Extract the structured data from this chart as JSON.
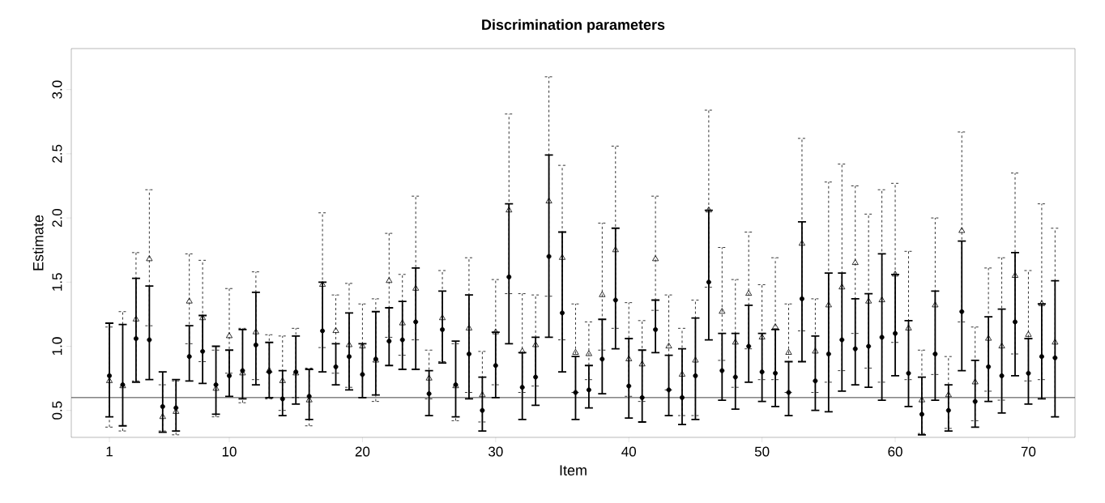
{
  "chart_data": {
    "type": "scatter",
    "title": "Discrimination parameters",
    "xlabel": "Item",
    "ylabel": "Estimate",
    "x": [
      1,
      2,
      3,
      4,
      5,
      6,
      7,
      8,
      9,
      10,
      11,
      12,
      13,
      14,
      15,
      16,
      17,
      18,
      19,
      20,
      21,
      22,
      23,
      24,
      25,
      26,
      27,
      28,
      29,
      30,
      31,
      32,
      33,
      34,
      35,
      36,
      37,
      38,
      39,
      40,
      41,
      42,
      43,
      44,
      45,
      46,
      47,
      48,
      49,
      50,
      51,
      52,
      53,
      54,
      55,
      56,
      57,
      58,
      59,
      60,
      61,
      62,
      63,
      64,
      65,
      66,
      67,
      68,
      69,
      70,
      71,
      72
    ],
    "series": [
      {
        "color": "#000000",
        "marker": "circle",
        "line_style": "solid",
        "values": [
          0.77,
          0.7,
          1.06,
          1.05,
          0.53,
          0.52,
          0.92,
          0.96,
          0.7,
          0.77,
          0.81,
          1.01,
          0.8,
          0.59,
          0.8,
          0.61,
          1.12,
          0.84,
          0.92,
          0.78,
          0.9,
          1.04,
          1.05,
          1.19,
          0.63,
          1.13,
          0.7,
          0.94,
          0.5,
          0.85,
          1.54,
          0.68,
          0.76,
          1.7,
          1.26,
          0.64,
          0.66,
          0.9,
          1.36,
          0.69,
          0.6,
          1.13,
          0.66,
          0.6,
          0.77,
          1.5,
          0.81,
          0.76,
          1.0,
          0.8,
          0.79,
          0.64,
          1.37,
          0.73,
          0.94,
          1.05,
          0.98,
          1.0,
          1.07,
          1.1,
          0.79,
          0.47,
          0.94,
          0.5,
          1.27,
          0.57,
          0.84,
          0.77,
          1.19,
          0.79,
          0.92,
          0.91
        ],
        "errors": [
          [
            0.45,
            1.18
          ],
          [
            0.38,
            1.17
          ],
          [
            0.72,
            1.53
          ],
          [
            0.74,
            1.47
          ],
          [
            0.33,
            0.8
          ],
          [
            0.34,
            0.74
          ],
          [
            0.73,
            1.16
          ],
          [
            0.71,
            1.24
          ],
          [
            0.47,
            1.0
          ],
          [
            0.61,
            0.97
          ],
          [
            0.59,
            1.13
          ],
          [
            0.7,
            1.42
          ],
          [
            0.6,
            1.03
          ],
          [
            0.46,
            0.81
          ],
          [
            0.55,
            1.08
          ],
          [
            0.43,
            0.82
          ],
          [
            0.8,
            1.5
          ],
          [
            0.7,
            1.02
          ],
          [
            0.66,
            1.26
          ],
          [
            0.6,
            1.02
          ],
          [
            0.62,
            1.27
          ],
          [
            0.85,
            1.3
          ],
          [
            0.82,
            1.35
          ],
          [
            0.82,
            1.61
          ],
          [
            0.46,
            0.81
          ],
          [
            0.87,
            1.43
          ],
          [
            0.45,
            1.04
          ],
          [
            0.59,
            1.4
          ],
          [
            0.34,
            0.76
          ],
          [
            0.6,
            1.11
          ],
          [
            1.02,
            2.11
          ],
          [
            0.43,
            0.95
          ],
          [
            0.54,
            1.07
          ],
          [
            1.07,
            2.49
          ],
          [
            0.8,
            1.89
          ],
          [
            0.43,
            0.92
          ],
          [
            0.52,
            0.85
          ],
          [
            0.63,
            1.21
          ],
          [
            0.98,
            1.92
          ],
          [
            0.44,
            1.06
          ],
          [
            0.41,
            0.97
          ],
          [
            0.95,
            1.36
          ],
          [
            0.46,
            0.93
          ],
          [
            0.39,
            0.98
          ],
          [
            0.43,
            1.22
          ],
          [
            1.05,
            2.06
          ],
          [
            0.58,
            1.1
          ],
          [
            0.51,
            1.1
          ],
          [
            0.72,
            1.32
          ],
          [
            0.57,
            1.1
          ],
          [
            0.53,
            1.13
          ],
          [
            0.46,
            0.88
          ],
          [
            0.88,
            1.97
          ],
          [
            0.5,
            1.08
          ],
          [
            0.49,
            1.57
          ],
          [
            0.65,
            1.57
          ],
          [
            0.7,
            1.37
          ],
          [
            0.68,
            1.41
          ],
          [
            0.58,
            1.72
          ],
          [
            0.77,
            1.56
          ],
          [
            0.53,
            1.2
          ],
          [
            0.31,
            0.76
          ],
          [
            0.58,
            1.43
          ],
          [
            0.34,
            0.7
          ],
          [
            0.81,
            1.82
          ],
          [
            0.37,
            0.89
          ],
          [
            0.57,
            1.23
          ],
          [
            0.48,
            1.29
          ],
          [
            0.77,
            1.73
          ],
          [
            0.55,
            1.06
          ],
          [
            0.59,
            1.33
          ],
          [
            0.45,
            1.51
          ]
        ]
      },
      {
        "color": "#000000",
        "marker": "triangle",
        "line_style": "dashed",
        "values": [
          0.73,
          0.69,
          1.21,
          1.68,
          0.45,
          0.49,
          1.35,
          1.22,
          0.67,
          1.08,
          0.79,
          1.11,
          0.81,
          0.73,
          0.79,
          0.58,
          1.48,
          1.12,
          1.01,
          1.0,
          0.89,
          1.51,
          1.18,
          1.45,
          0.75,
          1.22,
          0.69,
          1.14,
          0.62,
          1.11,
          2.06,
          0.96,
          1.01,
          2.13,
          1.69,
          0.95,
          0.94,
          1.4,
          1.75,
          0.9,
          0.86,
          1.68,
          1.0,
          0.78,
          0.89,
          2.06,
          1.27,
          1.03,
          1.41,
          1.07,
          1.15,
          0.95,
          1.8,
          0.96,
          1.32,
          1.46,
          1.65,
          1.35,
          1.36,
          1.56,
          1.14,
          0.58,
          1.32,
          0.62,
          1.9,
          0.72,
          1.06,
          1.0,
          1.55,
          1.09,
          1.33,
          1.03
        ],
        "errors": [
          [
            0.37,
            1.15
          ],
          [
            0.34,
            1.27
          ],
          [
            0.73,
            1.73
          ],
          [
            1.16,
            2.22
          ],
          [
            0.34,
            0.7
          ],
          [
            0.31,
            0.73
          ],
          [
            1.02,
            1.72
          ],
          [
            0.88,
            1.67
          ],
          [
            0.45,
            0.97
          ],
          [
            0.79,
            1.45
          ],
          [
            0.56,
            1.14
          ],
          [
            0.74,
            1.58
          ],
          [
            0.59,
            1.09
          ],
          [
            0.5,
            1.08
          ],
          [
            0.6,
            1.14
          ],
          [
            0.38,
            0.83
          ],
          [
            0.99,
            2.04
          ],
          [
            0.79,
            1.4
          ],
          [
            0.68,
            1.49
          ],
          [
            0.6,
            1.33
          ],
          [
            0.57,
            1.37
          ],
          [
            1.07,
            1.88
          ],
          [
            0.93,
            1.56
          ],
          [
            1.05,
            2.17
          ],
          [
            0.59,
            0.97
          ],
          [
            0.88,
            1.59
          ],
          [
            0.42,
            1.02
          ],
          [
            0.64,
            1.69
          ],
          [
            0.41,
            0.96
          ],
          [
            0.7,
            1.52
          ],
          [
            1.41,
            2.81
          ],
          [
            0.64,
            1.41
          ],
          [
            0.69,
            1.4
          ],
          [
            1.39,
            3.1
          ],
          [
            1.05,
            2.41
          ],
          [
            0.64,
            1.33
          ],
          [
            0.74,
            1.19
          ],
          [
            0.97,
            1.96
          ],
          [
            1.14,
            2.56
          ],
          [
            0.61,
            1.34
          ],
          [
            0.57,
            1.2
          ],
          [
            1.28,
            2.17
          ],
          [
            0.66,
            1.4
          ],
          [
            0.46,
            1.14
          ],
          [
            0.46,
            1.36
          ],
          [
            1.46,
            2.84
          ],
          [
            0.89,
            1.77
          ],
          [
            0.68,
            1.52
          ],
          [
            0.98,
            1.89
          ],
          [
            0.74,
            1.48
          ],
          [
            0.74,
            1.69
          ],
          [
            0.64,
            1.33
          ],
          [
            1.12,
            2.62
          ],
          [
            0.64,
            1.37
          ],
          [
            0.72,
            2.28
          ],
          [
            0.81,
            2.42
          ],
          [
            1.1,
            2.25
          ],
          [
            0.83,
            2.03
          ],
          [
            0.72,
            2.22
          ],
          [
            1.03,
            2.27
          ],
          [
            0.74,
            1.74
          ],
          [
            0.32,
            0.97
          ],
          [
            0.78,
            2.0
          ],
          [
            0.36,
            0.92
          ],
          [
            1.19,
            2.67
          ],
          [
            0.42,
            1.15
          ],
          [
            0.65,
            1.61
          ],
          [
            0.58,
            1.69
          ],
          [
            0.94,
            2.35
          ],
          [
            0.73,
            1.59
          ],
          [
            0.74,
            2.11
          ],
          [
            0.45,
            1.92
          ]
        ]
      }
    ],
    "xlim": [
      -1.86,
      73.5
    ],
    "ylim": [
      0.29,
      3.32
    ],
    "xticks": [
      1,
      10,
      20,
      30,
      40,
      50,
      60,
      70
    ],
    "yticks": [
      0.5,
      {
        "value": 1,
        "label": "1.0"
      },
      1.5,
      {
        "value": 2,
        "label": "2.0"
      },
      2.5,
      {
        "value": 3,
        "label": "3.0"
      }
    ],
    "ref_lines": [
      {
        "axis": "y",
        "value": 0.6,
        "color": "#404040"
      }
    ],
    "grid": false,
    "legend": false
  }
}
